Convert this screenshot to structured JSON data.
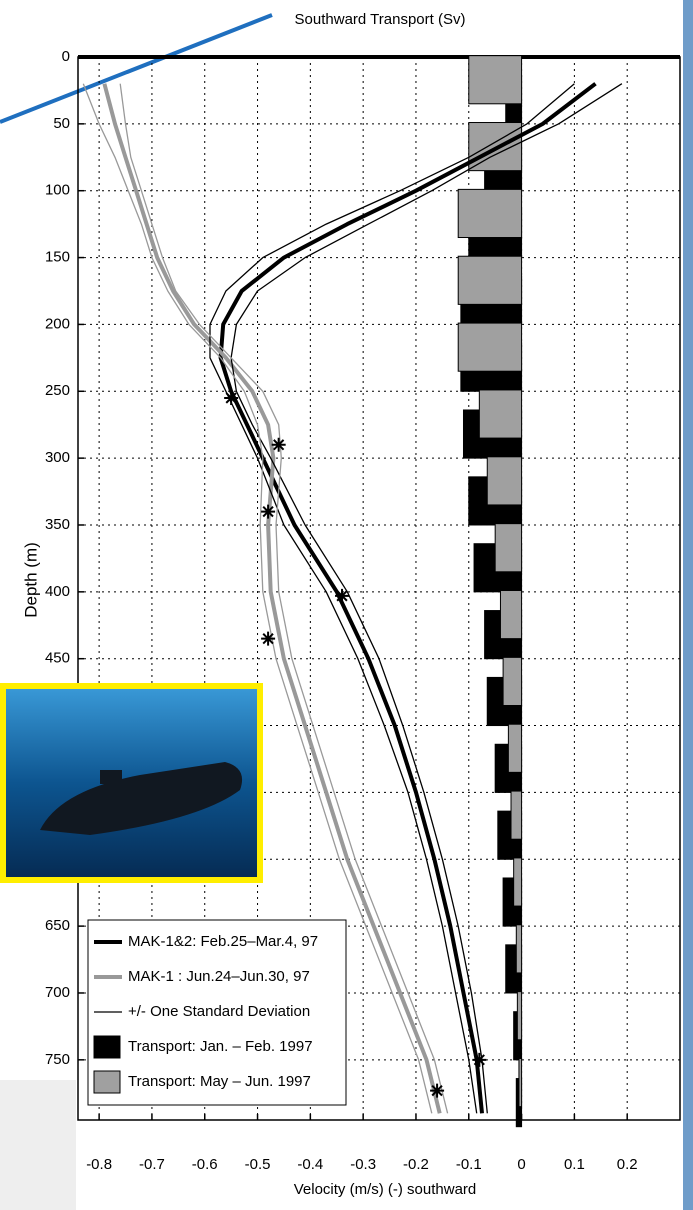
{
  "chart_data": {
    "type": "line",
    "title": "Southward Transport (Sv)",
    "x_label": "Velocity (m/s)  (-) southward",
    "y_label": "Depth (m)",
    "xlim": [
      -0.84,
      0.3
    ],
    "ylim": [
      0,
      795
    ],
    "y_inverted": true,
    "xticks": [
      -0.8,
      -0.7,
      -0.6,
      -0.5,
      -0.4,
      -0.3,
      -0.2,
      -0.1,
      0,
      0.1,
      0.2
    ],
    "yticks": [
      0,
      50,
      100,
      150,
      200,
      250,
      300,
      350,
      400,
      450,
      500,
      550,
      600,
      650,
      700,
      750
    ],
    "grid": true,
    "legend": "lower left",
    "depths": [
      20,
      50,
      75,
      100,
      125,
      150,
      175,
      200,
      225,
      250,
      275,
      300,
      350,
      400,
      450,
      500,
      550,
      600,
      650,
      700,
      750,
      790
    ],
    "series": [
      {
        "name": "MAK-1&2: Feb.25–Mar.4, 97",
        "type": "line",
        "color": "#000000",
        "linewidth": 4,
        "values": [
          0.14,
          0.04,
          -0.08,
          -0.2,
          -0.33,
          -0.45,
          -0.53,
          -0.565,
          -0.57,
          -0.55,
          -0.52,
          -0.49,
          -0.43,
          -0.35,
          -0.29,
          -0.24,
          -0.2,
          -0.165,
          -0.135,
          -0.11,
          -0.085,
          -0.075
        ]
      },
      {
        "name": "MAK-1   : Jun.24–Jun.30, 97",
        "type": "line",
        "color": "#999999",
        "linewidth": 4,
        "values": [
          -0.79,
          -0.77,
          -0.75,
          -0.73,
          -0.71,
          -0.69,
          -0.66,
          -0.62,
          -0.56,
          -0.51,
          -0.48,
          -0.47,
          -0.48,
          -0.475,
          -0.45,
          -0.41,
          -0.37,
          -0.33,
          -0.28,
          -0.23,
          -0.18,
          -0.155
        ]
      },
      {
        "name": "+/- One Standard Deviation",
        "type": "line",
        "color": "#000000",
        "linewidth": 1.3,
        "values": [
          0.19,
          0.07,
          -0.06,
          -0.17,
          -0.29,
          -0.41,
          -0.5,
          -0.54,
          -0.55,
          -0.54,
          -0.51,
          -0.475,
          -0.41,
          -0.33,
          -0.27,
          -0.225,
          -0.185,
          -0.15,
          -0.12,
          -0.095,
          -0.075,
          -0.065
        ]
      },
      {
        "name": "Transport: Jan. – Feb. 1997",
        "type": "bar",
        "color": "#000000",
        "depths": [
          32,
          82,
          132,
          182,
          232,
          282,
          332,
          382,
          432,
          482,
          532,
          582,
          632,
          682,
          732,
          782
        ],
        "values": [
          -0.03,
          -0.07,
          -0.1,
          -0.115,
          -0.115,
          -0.11,
          -0.1,
          -0.09,
          -0.07,
          -0.065,
          -0.05,
          -0.045,
          -0.035,
          -0.03,
          -0.015,
          -0.01
        ]
      },
      {
        "name": "Transport: May – Jun. 1997",
        "type": "bar",
        "color": "#a0a0a0",
        "depths": [
          17,
          67,
          117,
          167,
          217,
          267,
          317,
          367,
          417,
          467,
          517,
          567,
          617,
          667,
          717,
          767
        ],
        "values": [
          -0.1,
          -0.1,
          -0.12,
          -0.12,
          -0.12,
          -0.08,
          -0.065,
          -0.05,
          -0.04,
          -0.035,
          -0.025,
          -0.02,
          -0.015,
          -0.01,
          -0.008,
          -0.005
        ]
      },
      {
        "type": "line",
        "color": "#000000",
        "linewidth": 1.3,
        "values": [
          0.1,
          0.01,
          -0.1,
          -0.23,
          -0.37,
          -0.49,
          -0.56,
          -0.59,
          -0.59,
          -0.56,
          -0.53,
          -0.5,
          -0.45,
          -0.37,
          -0.31,
          -0.26,
          -0.215,
          -0.18,
          -0.15,
          -0.125,
          -0.1,
          -0.085
        ]
      },
      {
        "type": "line",
        "color": "#999999",
        "linewidth": 1.3,
        "values": [
          -0.76,
          -0.75,
          -0.74,
          -0.72,
          -0.7,
          -0.68,
          -0.655,
          -0.61,
          -0.55,
          -0.49,
          -0.46,
          -0.455,
          -0.465,
          -0.46,
          -0.435,
          -0.395,
          -0.355,
          -0.315,
          -0.265,
          -0.215,
          -0.165,
          -0.14
        ]
      },
      {
        "type": "line",
        "color": "#999999",
        "linewidth": 1.3,
        "values": [
          -0.83,
          -0.8,
          -0.77,
          -0.745,
          -0.72,
          -0.7,
          -0.67,
          -0.63,
          -0.57,
          -0.525,
          -0.5,
          -0.49,
          -0.495,
          -0.49,
          -0.465,
          -0.425,
          -0.385,
          -0.345,
          -0.295,
          -0.245,
          -0.195,
          -0.17
        ]
      },
      {
        "type": "scatter",
        "color": "#000000",
        "depths": [
          255,
          403,
          750,
          290,
          340,
          435,
          773
        ],
        "values": [
          -0.55,
          -0.34,
          -0.08,
          -0.46,
          -0.48,
          -0.48,
          -0.16
        ]
      }
    ]
  }
}
